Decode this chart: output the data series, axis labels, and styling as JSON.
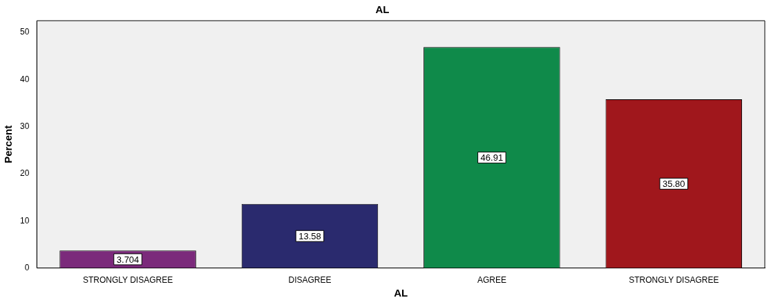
{
  "chart_data": {
    "type": "bar",
    "title": "AL",
    "xlabel": "AL",
    "ylabel": "Percent",
    "categories": [
      "STRONGLY DISAGREE",
      "DISAGREE",
      "AGREE",
      "STRONGLY DISAGREE"
    ],
    "values": [
      3.704,
      13.58,
      46.91,
      35.8
    ],
    "colors": [
      "#7b2a7b",
      "#2a2a6e",
      "#0f8a4a",
      "#a0171c"
    ],
    "value_labels": [
      "3.704",
      "13.58",
      "46.91",
      "35.80"
    ],
    "ylim": [
      0,
      52.5
    ],
    "yticks": [
      0,
      10,
      20,
      30,
      40,
      50
    ],
    "grid": false,
    "legend": false
  }
}
